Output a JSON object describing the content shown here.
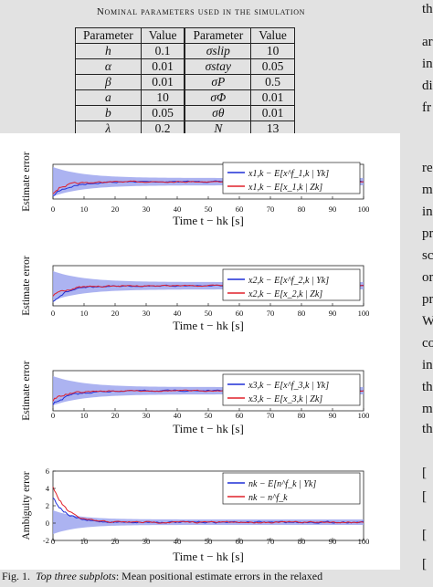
{
  "table": {
    "caption": "Nominal parameters used in the simulation",
    "headers": [
      "Parameter",
      "Value",
      "Parameter",
      "Value"
    ],
    "rows": [
      [
        "h",
        "0.1",
        "σslip",
        "10"
      ],
      [
        "α",
        "0.01",
        "σstay",
        "0.05"
      ],
      [
        "β",
        "0.01",
        "σP",
        "0.5"
      ],
      [
        "a",
        "10",
        "σΦ",
        "0.01"
      ],
      [
        "b",
        "0.05",
        "σθ",
        "0.01"
      ],
      [
        "λ",
        "0.2",
        "N",
        "13"
      ]
    ]
  },
  "chart_data": [
    {
      "type": "line",
      "ylabel": "Estimate error",
      "xlabel": "Time t − hk [s]",
      "xlim": [
        0,
        100
      ],
      "xticks": [
        "0",
        "10",
        "20",
        "30",
        "40",
        "50",
        "60",
        "70",
        "80",
        "90",
        "100"
      ],
      "series": [
        {
          "name": "x1,k − E[x^f_1,k | Yk]",
          "color": "#1f2fd6"
        },
        {
          "name": "x1,k − E[x_1,k | Zk]",
          "color": "#e0202a"
        }
      ]
    },
    {
      "type": "line",
      "ylabel": "Estimate error",
      "xlabel": "Time t − hk [s]",
      "xlim": [
        0,
        100
      ],
      "xticks": [
        "0",
        "10",
        "20",
        "30",
        "40",
        "50",
        "60",
        "70",
        "80",
        "90",
        "100"
      ],
      "series": [
        {
          "name": "x2,k − E[x^f_2,k | Yk]",
          "color": "#1f2fd6"
        },
        {
          "name": "x2,k − E[x_2,k | Zk]",
          "color": "#e0202a"
        }
      ]
    },
    {
      "type": "line",
      "ylabel": "Estimate error",
      "xlabel": "Time t − hk [s]",
      "xlim": [
        0,
        100
      ],
      "xticks": [
        "0",
        "10",
        "20",
        "30",
        "40",
        "50",
        "60",
        "70",
        "80",
        "90",
        "100"
      ],
      "series": [
        {
          "name": "x3,k − E[x^f_3,k | Yk]",
          "color": "#1f2fd6"
        },
        {
          "name": "x3,k − E[x_3,k | Zk]",
          "color": "#e0202a"
        }
      ]
    },
    {
      "type": "line",
      "ylabel": "Ambiguity error",
      "xlabel": "Time t − hk [s]",
      "xlim": [
        0,
        100
      ],
      "ylim": [
        -2,
        6
      ],
      "yticks": [
        "6",
        "4",
        "2",
        "0",
        "-2"
      ],
      "xticks": [
        "0",
        "10",
        "20",
        "30",
        "40",
        "50",
        "60",
        "70",
        "80",
        "90",
        "100"
      ],
      "series": [
        {
          "name": "nk − E[n^f_k | Yk]",
          "color": "#1f2fd6"
        },
        {
          "name": "nk − n^f_k",
          "color": "#e0202a"
        }
      ]
    }
  ],
  "caption": {
    "prefix": "Fig. 1.",
    "emph": "Top three subplots",
    "text": ": Mean positional estimate errors in the relaxed"
  },
  "side_text": [
    "th",
    "ar",
    "in",
    "di",
    "fr",
    "re",
    "m",
    "in",
    "pr",
    "sc",
    "or",
    "pr",
    "W",
    "co",
    "in",
    "th",
    "m",
    "th",
    "[",
    "[",
    "[",
    "["
  ]
}
